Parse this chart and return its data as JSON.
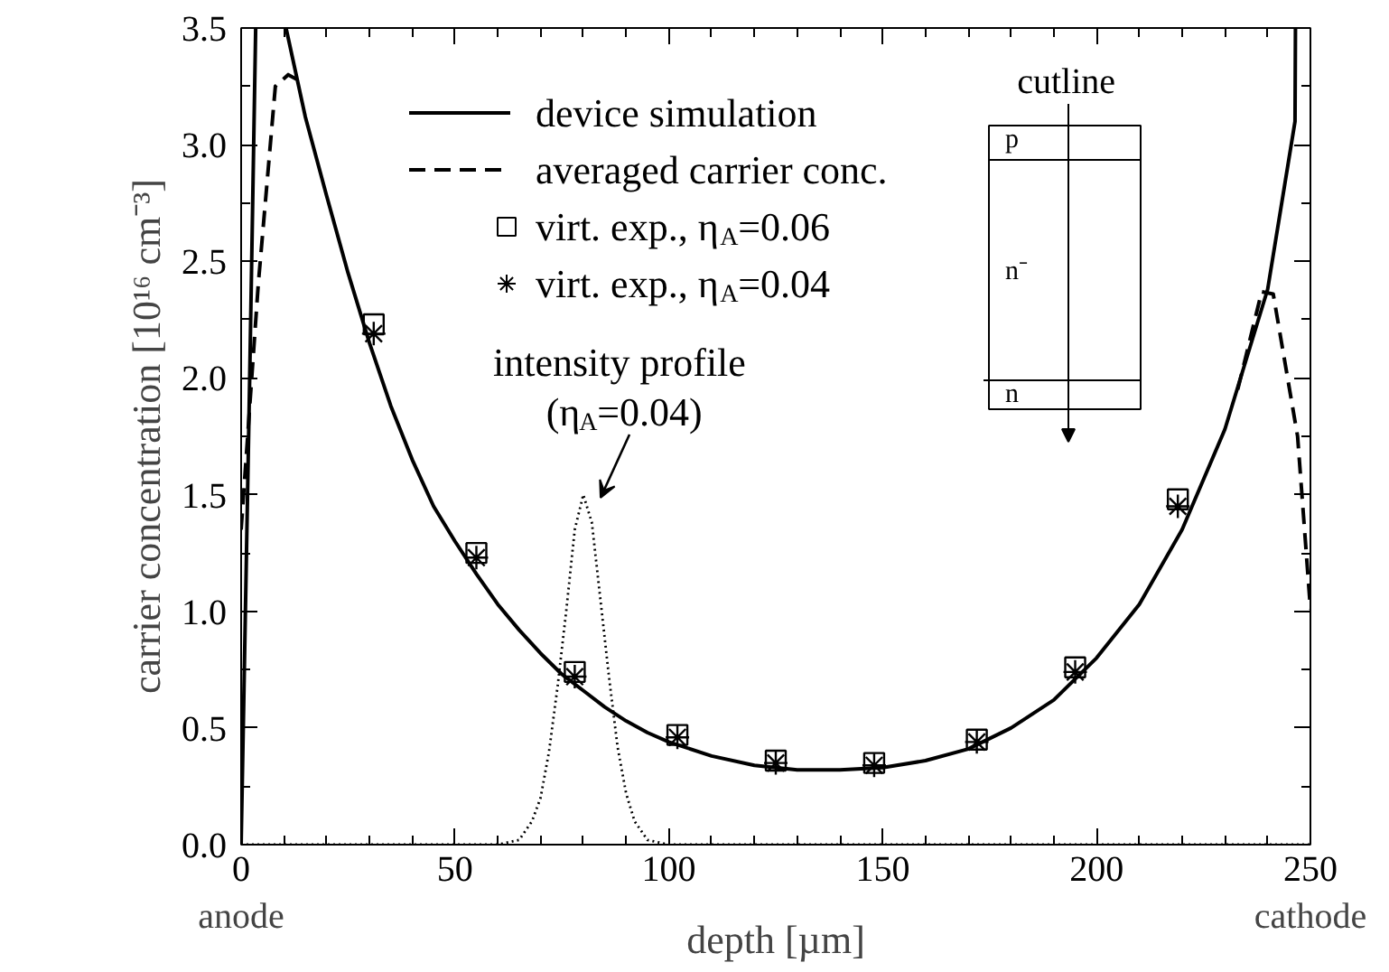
{
  "chart_data": {
    "type": "line",
    "xlabel": "depth [µm]",
    "ylabel": "carrier concentration [10¹⁶ cm⁻³]",
    "xlim": [
      0,
      250
    ],
    "ylim": [
      0,
      3.5
    ],
    "xticks": [
      0,
      {
        "value": 10,
        "label": null
      },
      {
        "value": 20,
        "label": null
      },
      {
        "value": 30,
        "label": null
      },
      {
        "value": 40,
        "label": null
      },
      50,
      {
        "value": 60,
        "label": null
      },
      {
        "value": 70,
        "label": null
      },
      {
        "value": 80,
        "label": null
      },
      {
        "value": 90,
        "label": null
      },
      100,
      {
        "value": 110,
        "label": null
      },
      {
        "value": 120,
        "label": null
      },
      {
        "value": 130,
        "label": null
      },
      {
        "value": 140,
        "label": null
      },
      150,
      {
        "value": 160,
        "label": null
      },
      {
        "value": 170,
        "label": null
      },
      {
        "value": 180,
        "label": null
      },
      {
        "value": 190,
        "label": null
      },
      200,
      {
        "value": 210,
        "label": null
      },
      {
        "value": 220,
        "label": null
      },
      {
        "value": 230,
        "label": null
      },
      {
        "value": 240,
        "label": null
      },
      250
    ],
    "yticks": [
      {
        "value": 0,
        "label": "0.0"
      },
      {
        "value": 0.25,
        "label": null
      },
      0.5,
      {
        "value": 0.75,
        "label": null
      },
      {
        "value": 1,
        "label": "1.0"
      },
      {
        "value": 1.25,
        "label": null
      },
      1.5,
      {
        "value": 1.75,
        "label": null
      },
      {
        "value": 2,
        "label": "2.0"
      },
      {
        "value": 2.25,
        "label": null
      },
      2.5,
      {
        "value": 2.75,
        "label": null
      },
      {
        "value": 3,
        "label": "3.0"
      },
      {
        "value": 3.25,
        "label": null
      },
      3.5
    ],
    "grid": false,
    "legend": "top",
    "series": [
      {
        "name": "device simulation",
        "color": "#000000",
        "line_style": "solid",
        "marker": "none",
        "x": [
          0,
          1,
          2,
          3.4,
          6,
          10.5,
          15,
          20,
          25,
          30,
          35,
          40,
          45,
          50,
          55,
          60,
          65,
          70,
          75,
          80,
          85,
          90,
          95,
          100,
          110,
          120,
          130,
          140,
          150,
          160,
          170,
          180,
          190,
          200,
          210,
          220,
          230,
          240,
          246.4,
          246.5
        ],
        "values": [
          0,
          1.0,
          2.0,
          3.5,
          null,
          3.5,
          3.12,
          2.78,
          2.45,
          2.15,
          1.88,
          1.65,
          1.45,
          1.3,
          1.16,
          1.03,
          0.92,
          0.82,
          0.73,
          0.66,
          0.59,
          0.53,
          0.48,
          0.44,
          0.38,
          0.34,
          0.32,
          0.32,
          0.33,
          0.36,
          0.41,
          0.5,
          0.62,
          0.8,
          1.03,
          1.35,
          1.78,
          2.38,
          3.1,
          3.5
        ]
      },
      {
        "name": "averaged carrier conc.",
        "color": "#000000",
        "line_style": "dashed",
        "marker": "none",
        "x": [
          0,
          4,
          8,
          11,
          13,
          100,
          233,
          238.6,
          241.3,
          247,
          250
        ],
        "values": [
          1.35,
          2.4,
          3.25,
          3.3,
          3.28,
          null,
          1.95,
          2.37,
          2.36,
          1.75,
          1.01
        ]
      },
      {
        "name": "virt. exp., η$_{A}$=0.06",
        "type": "scatter",
        "color": "#000000",
        "marker": "square",
        "x": [
          31,
          55,
          78,
          102,
          125,
          148,
          172,
          195,
          219
        ],
        "values": [
          2.23,
          1.25,
          0.74,
          0.47,
          0.36,
          0.35,
          0.45,
          0.76,
          1.48
        ]
      },
      {
        "name": "virt. exp., η$_{A}$=0.04",
        "type": "scatter",
        "color": "#000000",
        "marker": "cross",
        "x": [
          31,
          55,
          78,
          102,
          125,
          148,
          172,
          195,
          219
        ],
        "values": [
          2.19,
          1.23,
          0.72,
          0.46,
          0.35,
          0.34,
          0.44,
          0.74,
          1.45
        ]
      },
      {
        "color": "#000000",
        "line_style": "dotted",
        "marker": "none",
        "x": [
          0,
          60,
          65,
          68,
          70,
          72,
          74,
          76,
          78,
          80,
          82,
          84,
          86,
          88,
          90,
          92,
          95,
          100,
          250
        ],
        "values": [
          0,
          0,
          0.02,
          0.1,
          0.2,
          0.4,
          0.68,
          1.0,
          1.35,
          1.5,
          1.38,
          1.05,
          0.72,
          0.42,
          0.22,
          0.1,
          0.02,
          0,
          0
        ]
      }
    ],
    "annotations": [
      "anode",
      "cathode",
      "intensity profile\n(η$_{A}$=0.04)",
      "cutline",
      "p",
      "n⁻",
      "n"
    ]
  }
}
